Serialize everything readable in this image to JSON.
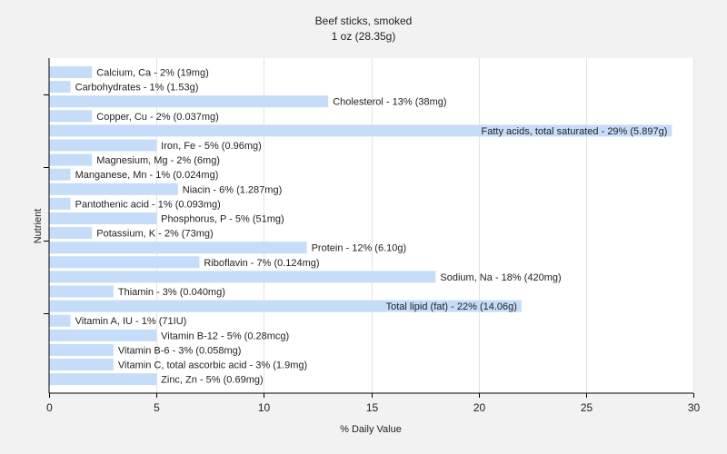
{
  "chart_data": {
    "type": "bar",
    "orientation": "horizontal",
    "title": "Beef sticks, smoked",
    "subtitle": "1 oz (28.35g)",
    "xlabel": "% Daily Value",
    "ylabel": "Nutrient",
    "xlim": [
      0,
      30
    ],
    "xticks": [
      0,
      5,
      10,
      15,
      20,
      25,
      30
    ],
    "grid": true,
    "bar_color": "#c5ddf8",
    "categories": [
      "Calcium, Ca",
      "Carbohydrates",
      "Cholesterol",
      "Copper, Cu",
      "Fatty acids, total saturated",
      "Iron, Fe",
      "Magnesium, Mg",
      "Manganese, Mn",
      "Niacin",
      "Pantothenic acid",
      "Phosphorus, P",
      "Potassium, K",
      "Protein",
      "Riboflavin",
      "Sodium, Na",
      "Thiamin",
      "Total lipid (fat)",
      "Vitamin A, IU",
      "Vitamin B-12",
      "Vitamin B-6",
      "Vitamin C, total ascorbic acid",
      "Zinc, Zn"
    ],
    "values": [
      2,
      1,
      13,
      2,
      29,
      5,
      2,
      1,
      6,
      1,
      5,
      2,
      12,
      7,
      18,
      3,
      22,
      1,
      5,
      3,
      3,
      5
    ],
    "labels": [
      "Calcium, Ca - 2% (19mg)",
      "Carbohydrates - 1% (1.53g)",
      "Cholesterol - 13% (38mg)",
      "Copper, Cu - 2% (0.037mg)",
      "Fatty acids, total saturated - 29% (5.897g)",
      "Iron, Fe - 5% (0.96mg)",
      "Magnesium, Mg - 2% (6mg)",
      "Manganese, Mn - 1% (0.024mg)",
      "Niacin - 6% (1.287mg)",
      "Pantothenic acid - 1% (0.093mg)",
      "Phosphorus, P - 5% (51mg)",
      "Potassium, K - 2% (73mg)",
      "Protein - 12% (6.10g)",
      "Riboflavin - 7% (0.124mg)",
      "Sodium, Na - 18% (420mg)",
      "Thiamin - 3% (0.040mg)",
      "Total lipid (fat) - 22% (14.06g)",
      "Vitamin A, IU - 1% (71IU)",
      "Vitamin B-12 - 5% (0.28mcg)",
      "Vitamin B-6 - 3% (0.058mg)",
      "Vitamin C, total ascorbic acid - 3% (1.9mg)",
      "Zinc, Zn - 5% (0.69mg)"
    ]
  }
}
